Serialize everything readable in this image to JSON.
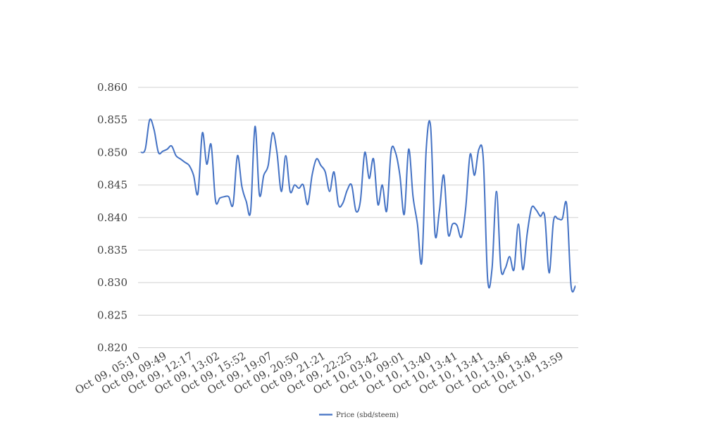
{
  "chart_data": {
    "type": "line",
    "ylim": [
      0.82,
      0.86
    ],
    "y_ticks": [
      "0.860",
      "0.855",
      "0.850",
      "0.845",
      "0.840",
      "0.835",
      "0.830",
      "0.825",
      "0.820"
    ],
    "x_tick_labels": [
      "Oct 09, 05:10",
      "Oct 09, 09:49",
      "Oct 09, 12:17",
      "Oct 09, 13:02",
      "Oct 09, 15:52",
      "Oct 09, 19:07",
      "Oct 09, 20:50",
      "Oct 09, 21:21",
      "Oct 09, 22:25",
      "Oct 10, 03:42",
      "Oct 10, 09:01",
      "Oct 10, 13:40",
      "Oct 10, 13:41",
      "Oct 10, 13:41",
      "Oct 10, 13:46",
      "Oct 10, 13:48",
      "Oct 10, 13:59"
    ],
    "grid": true,
    "legend_position": "bottom",
    "series": [
      {
        "name": "Price (sbd/steem)",
        "color": "#4472C4",
        "values": [
          0.85,
          0.8505,
          0.855,
          0.8535,
          0.85,
          0.8502,
          0.8505,
          0.851,
          0.8495,
          0.849,
          0.8485,
          0.848,
          0.8465,
          0.8437,
          0.853,
          0.8482,
          0.8512,
          0.8426,
          0.843,
          0.8432,
          0.8432,
          0.842,
          0.8495,
          0.8448,
          0.8425,
          0.841,
          0.854,
          0.8435,
          0.8465,
          0.848,
          0.853,
          0.85,
          0.844,
          0.8495,
          0.844,
          0.845,
          0.8445,
          0.845,
          0.842,
          0.8465,
          0.849,
          0.848,
          0.847,
          0.844,
          0.847,
          0.842,
          0.8422,
          0.8442,
          0.845,
          0.841,
          0.8425,
          0.85,
          0.846,
          0.849,
          0.842,
          0.845,
          0.841,
          0.8502,
          0.85,
          0.8465,
          0.8405,
          0.8505,
          0.8432,
          0.839,
          0.8332,
          0.8505,
          0.854,
          0.8375,
          0.841,
          0.8465,
          0.8375,
          0.839,
          0.8388,
          0.837,
          0.8415,
          0.8497,
          0.8465,
          0.8505,
          0.849,
          0.8305,
          0.8322,
          0.844,
          0.8322,
          0.8322,
          0.834,
          0.832,
          0.839,
          0.832,
          0.8375,
          0.8415,
          0.8412,
          0.8402,
          0.8402,
          0.8315,
          0.8395,
          0.8398,
          0.8398,
          0.842,
          0.8295,
          0.8295
        ]
      }
    ]
  }
}
